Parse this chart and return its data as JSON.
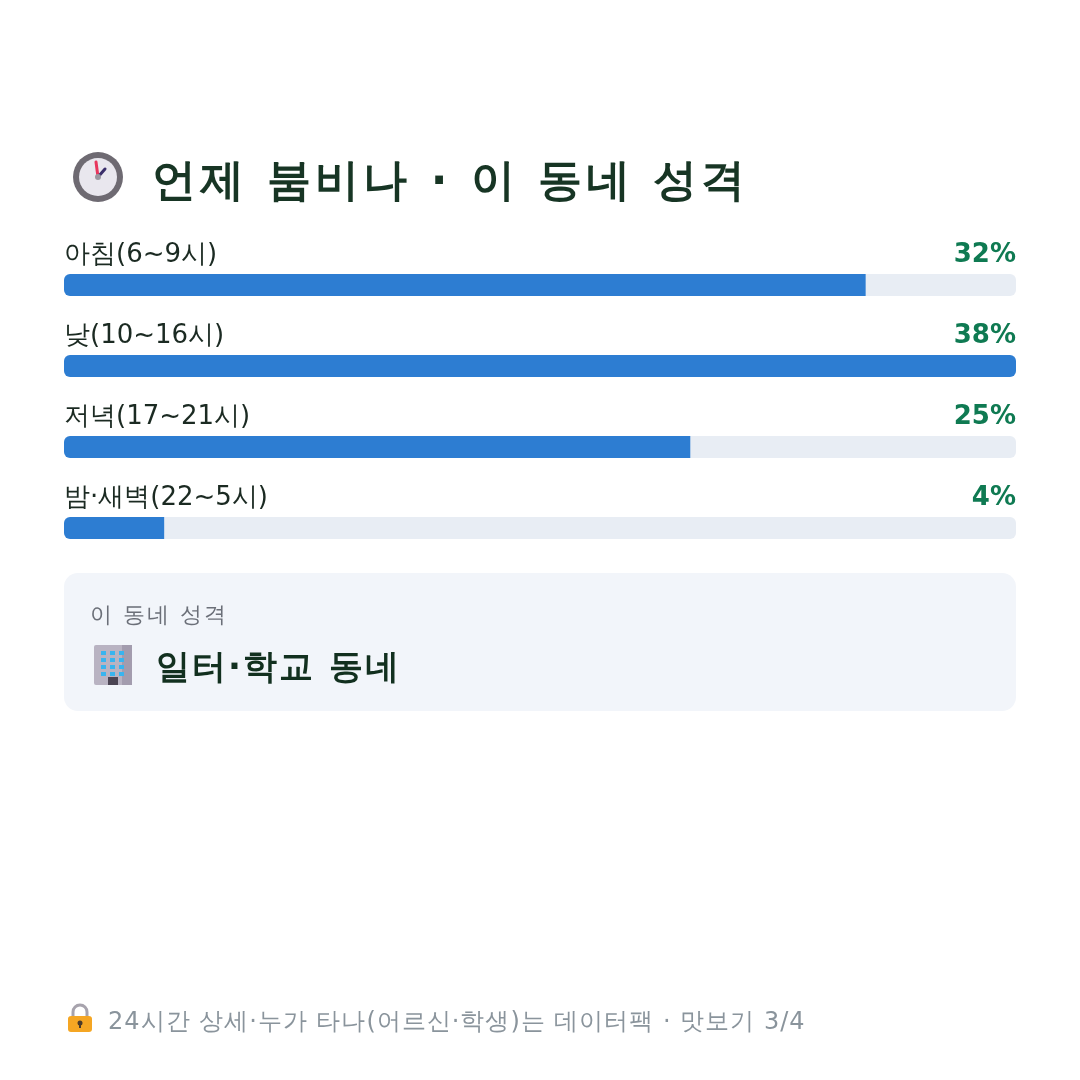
{
  "chart_data": {
    "type": "bar",
    "orientation": "horizontal",
    "title": "언제 붐비나 · 이 동네 성격",
    "categories": [
      "아침(6~9시)",
      "낮(10~16시)",
      "저녁(17~21시)",
      "밤·새벽(22~5시)"
    ],
    "values": [
      32,
      38,
      25,
      4
    ],
    "value_labels": [
      "32%",
      "38%",
      "25%",
      "4%"
    ],
    "color": "#2d7dd2",
    "annotations": [
      "이 동네 성격",
      "일터·학교 동네",
      "24시간 상세·누가 타나(어르신·학생)는 데이터팩 · 맛보기 3/4"
    ]
  }
}
